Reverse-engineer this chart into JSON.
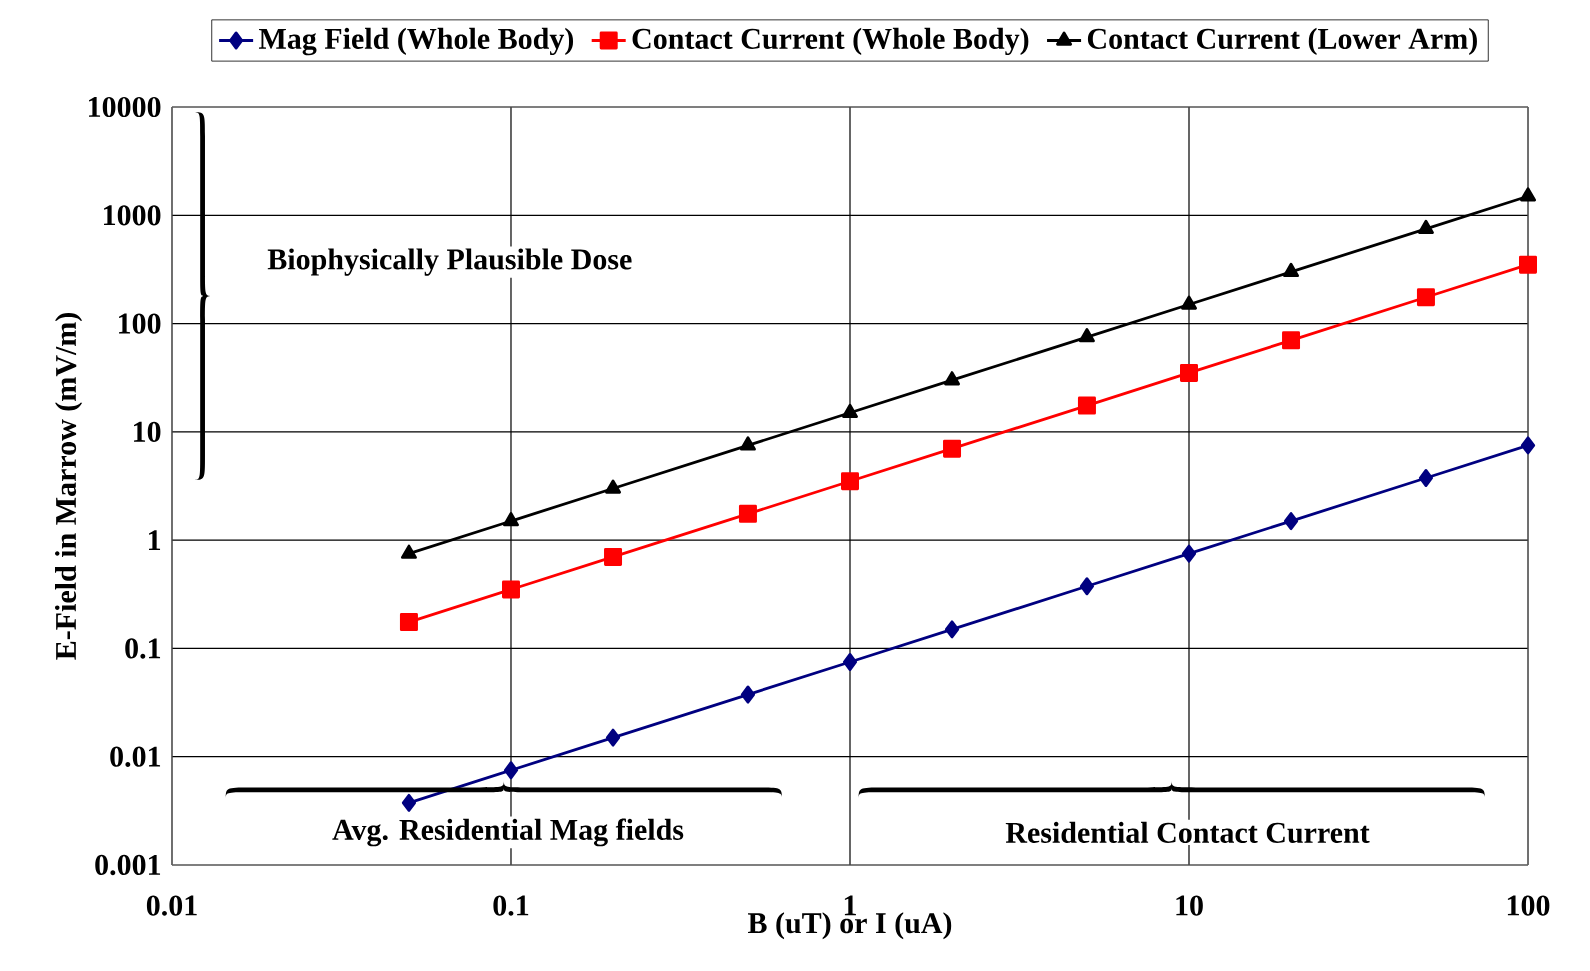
{
  "chart_data": {
    "type": "line",
    "xlabel": "B (uT) or I (uA)",
    "ylabel": "E-Field in Marrow (mV/m)",
    "x": [
      0.05,
      0.1,
      0.2,
      0.5,
      1,
      2,
      5,
      10,
      20,
      50,
      100
    ],
    "series": [
      {
        "name": "Mag Field (Whole Body)",
        "color": "#000080",
        "marker": "diamond",
        "values": [
          0.00375,
          0.0075,
          0.015,
          0.0375,
          0.075,
          0.15,
          0.375,
          0.75,
          1.5,
          3.75,
          7.5
        ]
      },
      {
        "name": "Contact Current (Whole Body)",
        "color": "#ff0000",
        "marker": "square",
        "values": [
          0.175,
          0.35,
          0.7,
          1.75,
          3.5,
          7,
          17.5,
          35,
          70,
          175,
          350
        ]
      },
      {
        "name": "Contact Current (Lower Arm)",
        "color": "#000000",
        "marker": "triangle",
        "values": [
          0.75,
          1.5,
          3,
          7.5,
          15,
          30,
          75,
          150,
          300,
          750,
          1500
        ]
      }
    ],
    "xlim": [
      0.01,
      100
    ],
    "ylim": [
      0.001,
      10000
    ],
    "xticks": [
      0.01,
      0.1,
      1,
      10,
      100
    ],
    "yticks": [
      0.001,
      0.01,
      0.1,
      1,
      10,
      100,
      1000,
      10000
    ],
    "log": "xy",
    "grid": true,
    "legend": "top",
    "line_style": "solid",
    "annotations": [
      "Biophysically Plausible Dose",
      "Avg. Residential Mag fields",
      "Residential Contact Current"
    ]
  }
}
